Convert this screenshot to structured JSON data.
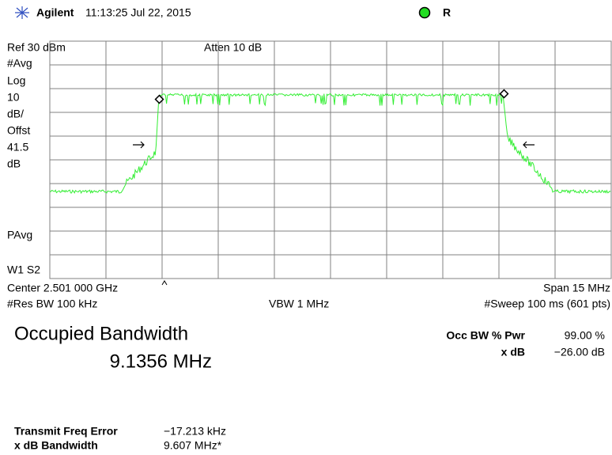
{
  "header": {
    "brand": "Agilent",
    "time": "11:13:25  Jul 22, 2015",
    "status": "R"
  },
  "display": {
    "ref": "Ref 30 dBm",
    "atten": "Atten 10 dB",
    "left_labels": [
      "#Avg",
      "Log",
      "10",
      "dB/",
      "Offst",
      "41.5",
      "dB"
    ],
    "pavg": "PAvg",
    "trace_mode": "W1  S2"
  },
  "settings": {
    "center": "Center 2.501 000 GHz",
    "span": "Span 15 MHz",
    "res_bw": "#Res BW 100 kHz",
    "vbw": "VBW 1 MHz",
    "sweep": "#Sweep 100 ms (601 pts)"
  },
  "result": {
    "title": "Occupied Bandwidth",
    "value": "9.1356 MHz",
    "occ_label": "Occ BW % Pwr",
    "occ_value": "99.00 %",
    "xdb_label": "x dB",
    "xdb_value": "−26.00 dB"
  },
  "details": [
    {
      "label": "Transmit Freq Error",
      "value": "−17.213 kHz"
    },
    {
      "label": "x dB Bandwidth",
      "value": "9.607 MHz*"
    }
  ]
}
